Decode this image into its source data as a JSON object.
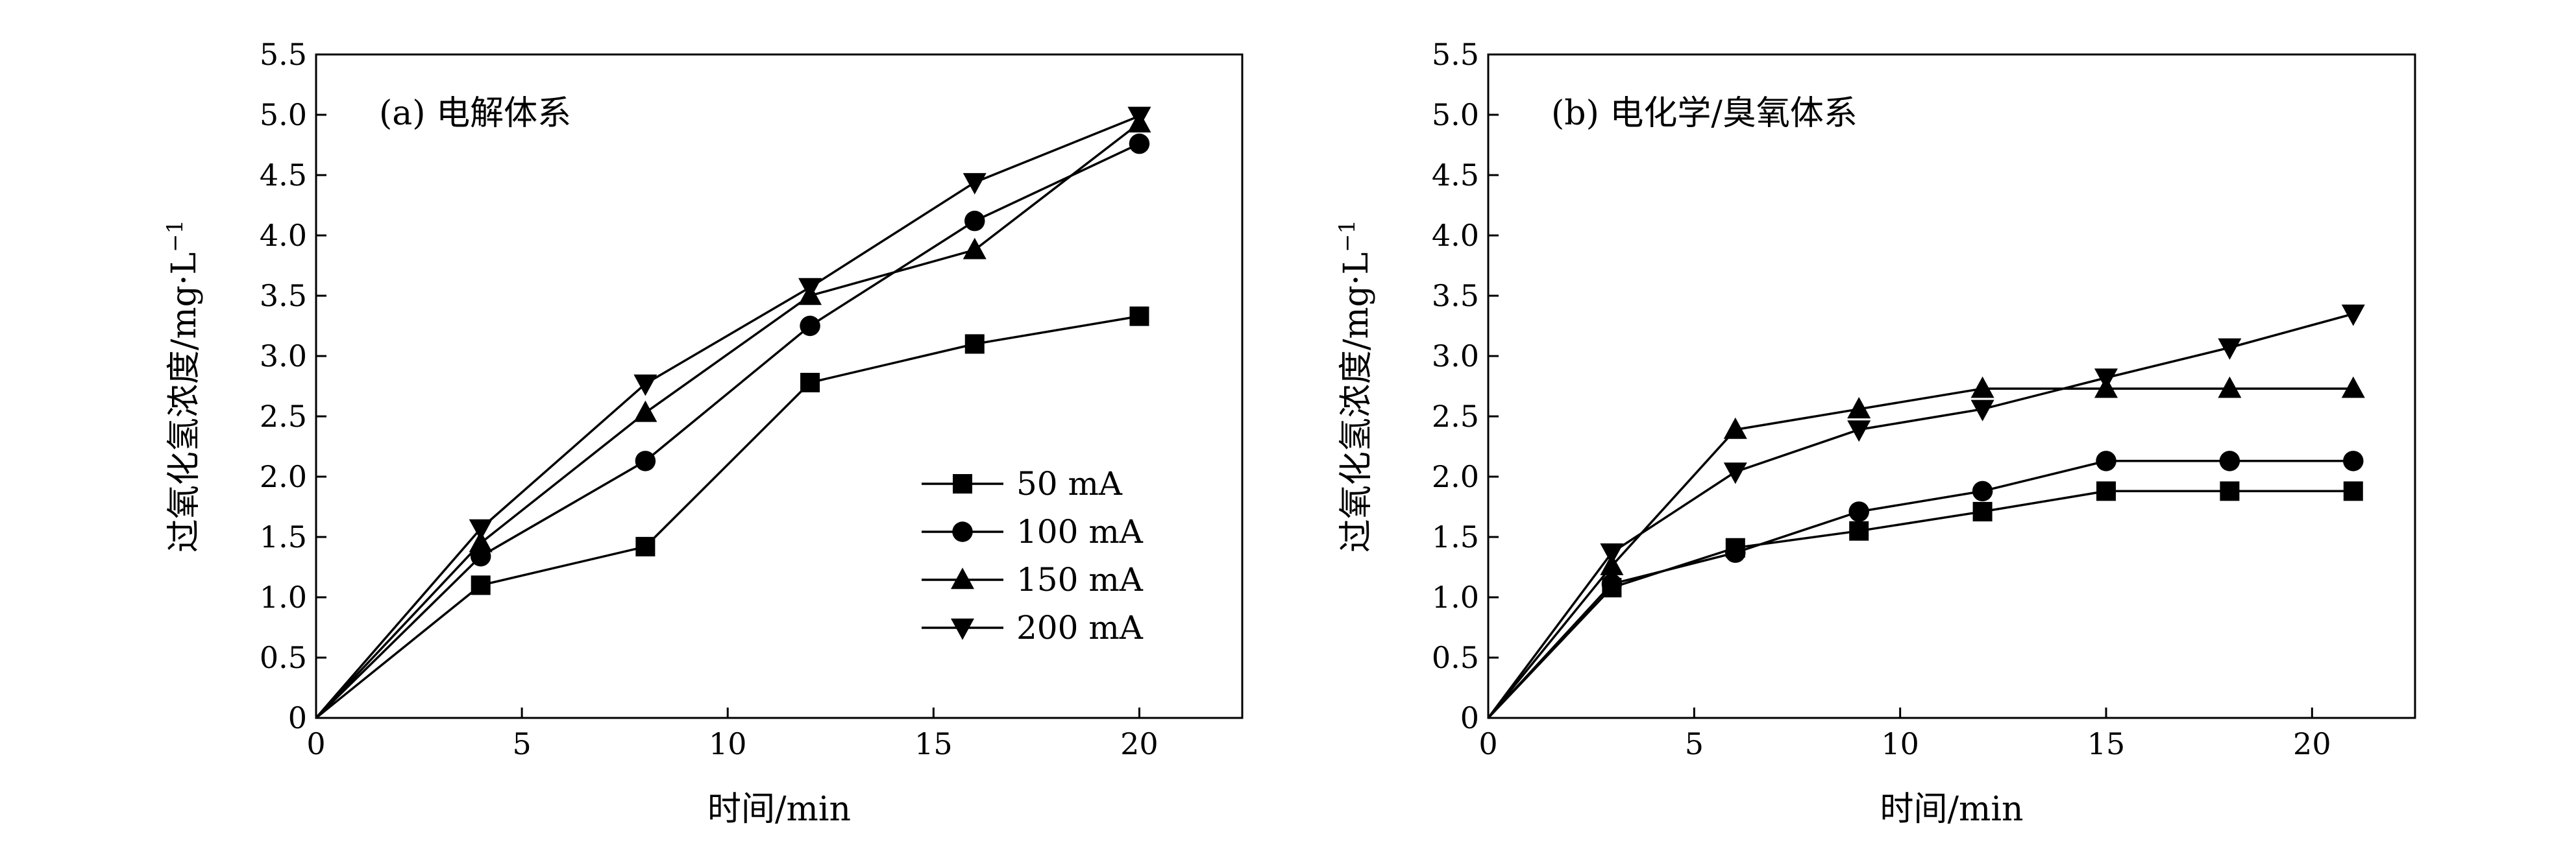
{
  "chart_data": [
    {
      "type": "line",
      "title": "(a) 电解体系",
      "xlabel": "时间/min",
      "ylabel": "过氧化氢浓度/mg·L",
      "ylabel_sup": "−1",
      "xlim": [
        0,
        22.5
      ],
      "ylim": [
        0,
        5.5
      ],
      "xticks": [
        "0",
        "5",
        "10",
        "15",
        "20"
      ],
      "yticks": [
        "0",
        "0.5",
        "1.0",
        "1.5",
        "2.0",
        "2.5",
        "3.0",
        "3.5",
        "4.0",
        "4.5",
        "5.0",
        "5.5"
      ],
      "legend_position": "lower-right",
      "series": [
        {
          "name": "50 mA",
          "marker": "square",
          "x": [
            0,
            4,
            8,
            12,
            16,
            20
          ],
          "y": [
            0,
            1.1,
            1.42,
            2.78,
            3.1,
            3.33
          ]
        },
        {
          "name": "100 mA",
          "marker": "circle",
          "x": [
            0,
            4,
            8,
            12,
            16,
            20
          ],
          "y": [
            0,
            1.34,
            2.13,
            3.25,
            4.12,
            4.76
          ]
        },
        {
          "name": "150 mA",
          "marker": "triangle-up",
          "x": [
            0,
            4,
            8,
            12,
            16,
            20
          ],
          "y": [
            0,
            1.45,
            2.53,
            3.5,
            3.88,
            4.93
          ]
        },
        {
          "name": "200 mA",
          "marker": "triangle-down",
          "x": [
            0,
            4,
            8,
            12,
            16,
            20
          ],
          "y": [
            0,
            1.57,
            2.77,
            3.57,
            4.44,
            4.99
          ]
        }
      ]
    },
    {
      "type": "line",
      "title": "(b) 电化学/臭氧体系",
      "xlabel": "时间/min",
      "ylabel": "过氧化氢浓度/mg·L",
      "ylabel_sup": "−1",
      "xlim": [
        0,
        22.5
      ],
      "ylim": [
        0,
        5.5
      ],
      "xticks": [
        "0",
        "5",
        "10",
        "15",
        "20"
      ],
      "yticks": [
        "0",
        "0.5",
        "1.0",
        "1.5",
        "2.0",
        "2.5",
        "3.0",
        "3.5",
        "4.0",
        "4.5",
        "5.0",
        "5.5"
      ],
      "series": [
        {
          "name": "50 mA",
          "marker": "square",
          "x": [
            0,
            3,
            6,
            9,
            12,
            15,
            18,
            21
          ],
          "y": [
            0,
            1.08,
            1.41,
            1.55,
            1.71,
            1.88,
            1.88,
            1.88
          ]
        },
        {
          "name": "100 mA",
          "marker": "circle",
          "x": [
            0,
            3,
            6,
            9,
            12,
            15,
            18,
            21
          ],
          "y": [
            0,
            1.11,
            1.37,
            1.71,
            1.88,
            2.13,
            2.13,
            2.13
          ]
        },
        {
          "name": "150 mA",
          "marker": "triangle-up",
          "x": [
            0,
            3,
            6,
            9,
            12,
            15,
            18,
            21
          ],
          "y": [
            0,
            1.26,
            2.39,
            2.56,
            2.73,
            2.73,
            2.73,
            2.73
          ]
        },
        {
          "name": "200 mA",
          "marker": "triangle-down",
          "x": [
            0,
            3,
            6,
            9,
            12,
            15,
            18,
            21
          ],
          "y": [
            0,
            1.37,
            2.04,
            2.39,
            2.56,
            2.82,
            3.07,
            3.35
          ]
        }
      ]
    }
  ]
}
